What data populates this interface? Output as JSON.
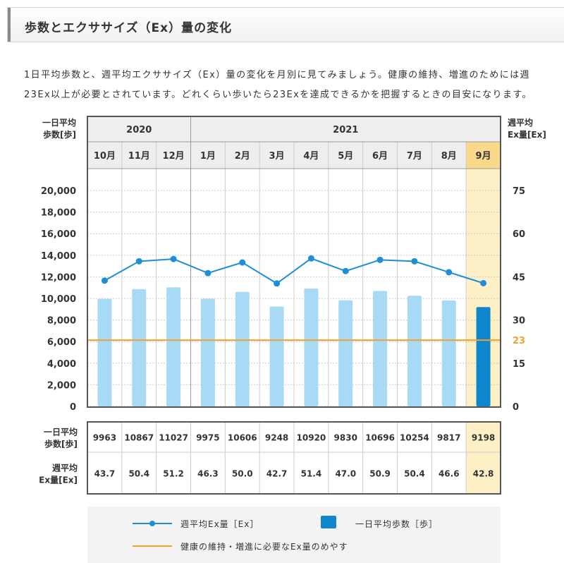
{
  "header": {
    "title": "歩数とエクササイズ（Ex）量の変化"
  },
  "intro": {
    "line1": "1日平均歩数と、週平均エクササイズ（Ex）量の変化を月別に見てみましょう。健康の維持、増進のためには週",
    "line2": "23Ex以上が必要とされています。どれくらい歩いたら23Exを達成できるかを把握するときの目安になります。"
  },
  "chart_data": {
    "type": "bar+line",
    "left_axis_title": [
      "一日平均",
      "歩数[歩]"
    ],
    "right_axis_title": [
      "週平均",
      "Ex量[Ex]"
    ],
    "years": [
      {
        "label": "2020",
        "span": 3
      },
      {
        "label": "2021",
        "span": 9
      }
    ],
    "categories": [
      "10月",
      "11月",
      "12月",
      "1月",
      "2月",
      "3月",
      "4月",
      "5月",
      "6月",
      "7月",
      "8月",
      "9月"
    ],
    "highlight_index": 11,
    "series": [
      {
        "name": "一日平均歩数［歩］",
        "type": "bar",
        "axis": "left",
        "values": [
          9963,
          10867,
          11027,
          9975,
          10606,
          9248,
          10920,
          9830,
          10696,
          10254,
          9817,
          9198
        ]
      },
      {
        "name": "週平均Ex量［Ex］",
        "type": "line",
        "axis": "right",
        "values": [
          43.7,
          50.4,
          51.2,
          46.3,
          50.0,
          42.7,
          51.4,
          47.0,
          50.9,
          50.4,
          46.6,
          42.8
        ]
      }
    ],
    "reference_line": {
      "name": "健康の維持・増進に必要なEx量のめやす",
      "value": 23,
      "axis": "right"
    },
    "left_axis": {
      "ylim": [
        0,
        20000
      ],
      "ticks": [
        "0",
        "2,000",
        "4,000",
        "6,000",
        "8,000",
        "10,000",
        "12,000",
        "14,000",
        "16,000",
        "18,000",
        "20,000"
      ]
    },
    "right_axis": {
      "ylim": [
        0,
        75
      ],
      "ticks": [
        "0",
        "15",
        "23",
        "30",
        "45",
        "60",
        "75"
      ]
    },
    "table_rows": [
      {
        "label": [
          "一日平均",
          "歩数[歩]"
        ],
        "values": [
          "9963",
          "10867",
          "11027",
          "9975",
          "10606",
          "9248",
          "10920",
          "9830",
          "10696",
          "10254",
          "9817",
          "9198"
        ]
      },
      {
        "label": [
          "週平均",
          "Ex量[Ex]"
        ],
        "values": [
          "43.7",
          "50.4",
          "51.2",
          "46.3",
          "50.0",
          "42.7",
          "51.4",
          "47.0",
          "50.9",
          "50.4",
          "46.6",
          "42.8"
        ]
      }
    ],
    "legend": [
      {
        "label": "週平均Ex量［Ex］",
        "symbol": "line-marker"
      },
      {
        "label": "一日平均歩数［歩］",
        "symbol": "bar"
      },
      {
        "label": "健康の維持・増進に必要なEx量のめやす",
        "symbol": "orange-line"
      }
    ],
    "grid": true,
    "colors": {
      "bar": "#a8daf5",
      "bar_highlight": "#0d86cc",
      "line": "#1e8fd6",
      "reference": "#f4a128",
      "highlight_bg": "#fdefc6",
      "highlight_header": "#fbd98a",
      "frame": "#555555",
      "grid": "#cccccc",
      "header_bg": "#eeeeee"
    }
  }
}
